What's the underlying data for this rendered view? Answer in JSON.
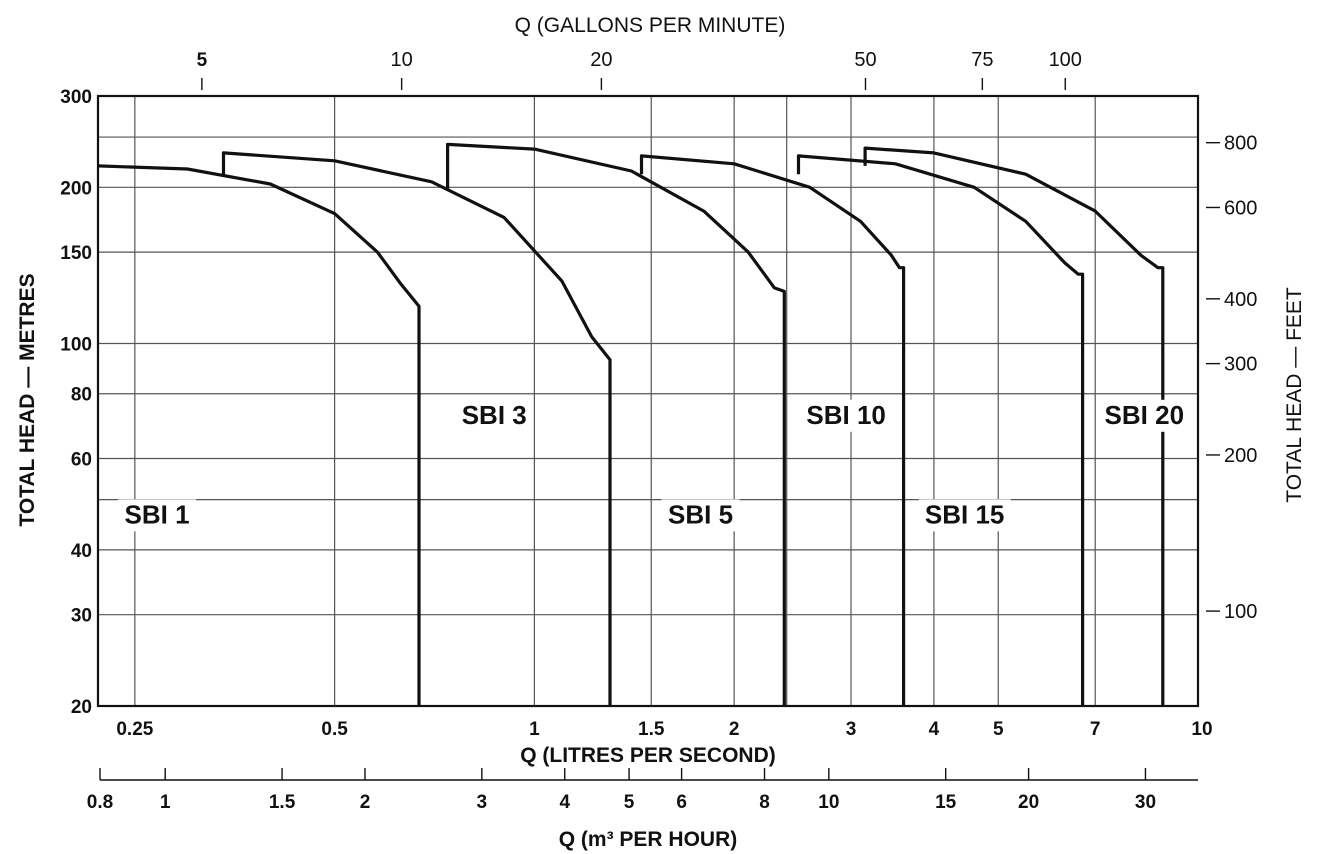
{
  "chart_data": {
    "type": "line",
    "x_scale": "log",
    "y_scale": "log",
    "xlim": [
      0.22,
      10
    ],
    "ylim": [
      20,
      300
    ],
    "xlabel": "Q (LITRES PER SECOND)",
    "ylabel": "TOTAL HEAD — METRES",
    "top_axis_title": "Q (GALLONS PER MINUTE)",
    "right_axis_title": "TOTAL HEAD — FEET",
    "bottom2_axis_title": "Q (m³ PER HOUR)",
    "x_ticks": [
      {
        "value": 0.25,
        "label": "0.25"
      },
      {
        "value": 0.5,
        "label": "0.5"
      },
      {
        "value": 1,
        "label": "1"
      },
      {
        "value": 1.5,
        "label": "1.5"
      },
      {
        "value": 2,
        "label": "2"
      },
      {
        "value": 3,
        "label": "3"
      },
      {
        "value": 4,
        "label": "4"
      },
      {
        "value": 5,
        "label": "5"
      },
      {
        "value": 7,
        "label": "7"
      },
      {
        "value": 10,
        "label": "10"
      }
    ],
    "y_ticks": [
      {
        "value": 20,
        "label": "20"
      },
      {
        "value": 30,
        "label": "30"
      },
      {
        "value": 40,
        "label": "40"
      },
      {
        "value": 60,
        "label": "60"
      },
      {
        "value": 80,
        "label": "80"
      },
      {
        "value": 100,
        "label": "100"
      },
      {
        "value": 150,
        "label": "150"
      },
      {
        "value": 200,
        "label": "200"
      },
      {
        "value": 300,
        "label": "300"
      }
    ],
    "y_grid_extra": [
      50,
      250
    ],
    "x_grid_extra": [
      2.4
    ],
    "top_ticks": [
      {
        "value": 5,
        "label": "5",
        "bold": true
      },
      {
        "value": 10,
        "label": "10",
        "bold": false
      },
      {
        "value": 20,
        "label": "20",
        "bold": false
      },
      {
        "value": 50,
        "label": "50",
        "bold": false
      },
      {
        "value": 75,
        "label": "75",
        "bold": false
      },
      {
        "value": 100,
        "label": "100",
        "bold": false
      }
    ],
    "right_ticks": [
      {
        "value": 100,
        "label": "100"
      },
      {
        "value": 200,
        "label": "200"
      },
      {
        "value": 300,
        "label": "300"
      },
      {
        "value": 400,
        "label": "400"
      },
      {
        "value": 600,
        "label": "600"
      },
      {
        "value": 800,
        "label": "800"
      }
    ],
    "bottom2_ticks": [
      {
        "value": 0.8,
        "label": "0.8"
      },
      {
        "value": 1,
        "label": "1"
      },
      {
        "value": 1.5,
        "label": "1.5"
      },
      {
        "value": 2,
        "label": "2"
      },
      {
        "value": 3,
        "label": "3"
      },
      {
        "value": 4,
        "label": "4"
      },
      {
        "value": 5,
        "label": "5"
      },
      {
        "value": 6,
        "label": "6"
      },
      {
        "value": 8,
        "label": "8"
      },
      {
        "value": 10,
        "label": "10"
      },
      {
        "value": 15,
        "label": "15"
      },
      {
        "value": 20,
        "label": "20"
      },
      {
        "value": 30,
        "label": "30"
      }
    ],
    "series": [
      {
        "name": "SBI 1",
        "label_at": [
          0.27,
          45
        ],
        "points": [
          [
            0.22,
            220
          ],
          [
            0.3,
            217
          ],
          [
            0.4,
            203
          ],
          [
            0.5,
            178
          ],
          [
            0.58,
            150
          ],
          [
            0.63,
            130
          ],
          [
            0.67,
            118
          ],
          [
            0.67,
            20
          ]
        ]
      },
      {
        "name": "SBI 3",
        "label_at": [
          0.87,
          70
        ],
        "points": [
          [
            0.34,
            212
          ],
          [
            0.34,
            233
          ],
          [
            0.5,
            225
          ],
          [
            0.7,
            205
          ],
          [
            0.9,
            175
          ],
          [
            1.1,
            132
          ],
          [
            1.22,
            103
          ],
          [
            1.3,
            93
          ],
          [
            1.3,
            20
          ]
        ]
      },
      {
        "name": "SBI 5",
        "label_at": [
          1.78,
          45
        ],
        "points": [
          [
            0.74,
            198
          ],
          [
            0.74,
            242
          ],
          [
            1.0,
            237
          ],
          [
            1.4,
            215
          ],
          [
            1.8,
            180
          ],
          [
            2.1,
            150
          ],
          [
            2.3,
            128
          ],
          [
            2.38,
            126
          ],
          [
            2.38,
            20
          ]
        ]
      },
      {
        "name": "SBI 10",
        "label_at": [
          2.95,
          70
        ],
        "points": [
          [
            1.45,
            212
          ],
          [
            1.45,
            230
          ],
          [
            2.0,
            222
          ],
          [
            2.6,
            200
          ],
          [
            3.1,
            172
          ],
          [
            3.45,
            148
          ],
          [
            3.55,
            140
          ],
          [
            3.6,
            140
          ],
          [
            3.6,
            20
          ]
        ]
      },
      {
        "name": "SBI 15",
        "label_at": [
          4.45,
          45
        ],
        "points": [
          [
            2.5,
            212
          ],
          [
            2.5,
            230
          ],
          [
            3.5,
            222
          ],
          [
            4.6,
            200
          ],
          [
            5.5,
            172
          ],
          [
            6.3,
            143
          ],
          [
            6.6,
            136
          ],
          [
            6.7,
            136
          ],
          [
            6.7,
            20
          ]
        ]
      },
      {
        "name": "SBI 20",
        "label_at": [
          8.3,
          70
        ],
        "points": [
          [
            3.15,
            220
          ],
          [
            3.15,
            238
          ],
          [
            4.0,
            233
          ],
          [
            5.5,
            212
          ],
          [
            7.0,
            180
          ],
          [
            8.2,
            148
          ],
          [
            8.7,
            140
          ],
          [
            8.85,
            140
          ],
          [
            8.85,
            20
          ]
        ]
      }
    ]
  }
}
